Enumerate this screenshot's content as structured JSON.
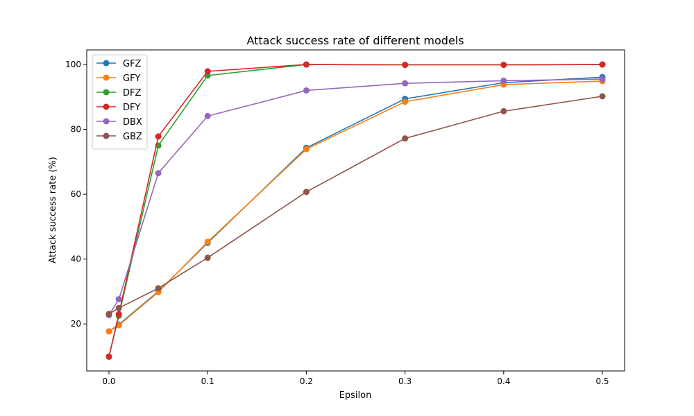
{
  "chart_data": {
    "type": "line",
    "title": "Attack success rate of different models",
    "xlabel": "Epsilon",
    "ylabel": "Attack success rate (%)",
    "xlim": [
      -0.0225,
      0.5225
    ],
    "ylim": [
      5.5,
      104.5
    ],
    "x": [
      0,
      0.01,
      0.05,
      0.1,
      0.2,
      0.3,
      0.4,
      0.5
    ],
    "xticks": [
      0.0,
      0.1,
      0.2,
      0.3,
      0.4,
      0.5
    ],
    "xtick_labels": [
      "0.0",
      "0.1",
      "0.2",
      "0.3",
      "0.4",
      "0.5"
    ],
    "yticks": [
      20,
      40,
      60,
      80,
      100
    ],
    "ytick_labels": [
      "20",
      "40",
      "60",
      "80",
      "100"
    ],
    "grid": false,
    "legend_position": "top-left",
    "series": [
      {
        "name": "GFZ",
        "color": "#1f77b4",
        "values": [
          17.7,
          19.8,
          30.0,
          45.0,
          74.3,
          89.4,
          94.4,
          96.1
        ]
      },
      {
        "name": "GFY",
        "color": "#ff7f0e",
        "values": [
          17.7,
          19.6,
          29.8,
          45.3,
          73.9,
          88.5,
          93.8,
          94.9
        ]
      },
      {
        "name": "DFZ",
        "color": "#2ca02c",
        "values": [
          9.9,
          22.5,
          75.0,
          96.6,
          100.0,
          99.9,
          99.9,
          100.0
        ]
      },
      {
        "name": "DFY",
        "color": "#d62728",
        "values": [
          9.9,
          23.0,
          77.8,
          97.9,
          100.0,
          99.9,
          99.9,
          100.0
        ]
      },
      {
        "name": "DBX",
        "color": "#9467bd",
        "values": [
          22.7,
          27.6,
          66.5,
          84.1,
          92.0,
          94.2,
          95.0,
          95.5
        ]
      },
      {
        "name": "GBZ",
        "color": "#8c564b",
        "values": [
          23.1,
          24.9,
          31.0,
          40.4,
          60.7,
          77.2,
          85.6,
          90.2
        ]
      }
    ]
  }
}
